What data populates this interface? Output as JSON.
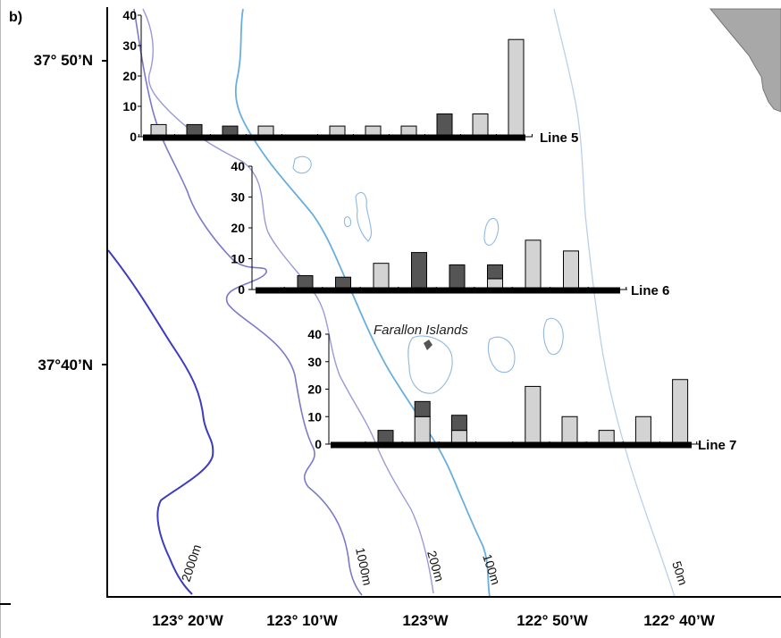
{
  "panel_label": "b)",
  "map": {
    "latitude_labels": [
      "37° 50’N",
      "37°40’N"
    ],
    "longitude_labels": [
      "123° 20’W",
      "123° 10’W",
      "123°W",
      "122° 50’W",
      "122° 40’W"
    ],
    "contour_labels": [
      "2000m",
      "1000m",
      "200m",
      "100m",
      "50m"
    ],
    "place_label": "Farallon Islands",
    "colors": {
      "land": "#a8a8a8",
      "contour_2000m": "#3c3cc0",
      "contour_1000m": "#7a7ac8",
      "contour_200m": "#9a9ad8",
      "contour_100m": "#6aaee0",
      "contour_50m": "#b8d0ea"
    }
  },
  "chart_data": [
    {
      "type": "bar",
      "name": "Line 5",
      "yticks": [
        0,
        10,
        20,
        30,
        40
      ],
      "ylim": [
        0,
        40
      ],
      "stations": 11,
      "values_light": [
        4,
        0,
        0,
        3.5,
        0,
        3.5,
        3.5,
        3.5,
        0,
        7.5,
        32
      ],
      "values_dark": [
        0,
        4,
        3.5,
        0,
        0,
        0,
        0,
        0,
        7.5,
        0,
        0
      ],
      "colors": {
        "light": "#d3d3d3",
        "dark": "#555555"
      }
    },
    {
      "type": "bar",
      "name": "Line 6",
      "yticks": [
        0,
        10,
        20,
        30,
        40
      ],
      "ylim": [
        0,
        40
      ],
      "stations": 9,
      "values_light": [
        0,
        0,
        8.5,
        0,
        0,
        3.5,
        16,
        12.5,
        0
      ],
      "values_dark": [
        4.5,
        4,
        0,
        12,
        8,
        4.5,
        0,
        0,
        0
      ],
      "colors": {
        "light": "#d3d3d3",
        "dark": "#555555"
      }
    },
    {
      "type": "bar",
      "name": "Line 7",
      "yticks": [
        0,
        10,
        20,
        30,
        40
      ],
      "ylim": [
        0,
        40
      ],
      "stations": 9,
      "values_light": [
        0,
        10,
        5,
        0,
        21,
        10,
        5,
        10,
        23.5
      ],
      "values_dark": [
        5,
        5.5,
        5.5,
        0,
        0,
        0,
        0,
        0,
        0
      ],
      "colors": {
        "light": "#d3d3d3",
        "dark": "#555555"
      }
    }
  ]
}
